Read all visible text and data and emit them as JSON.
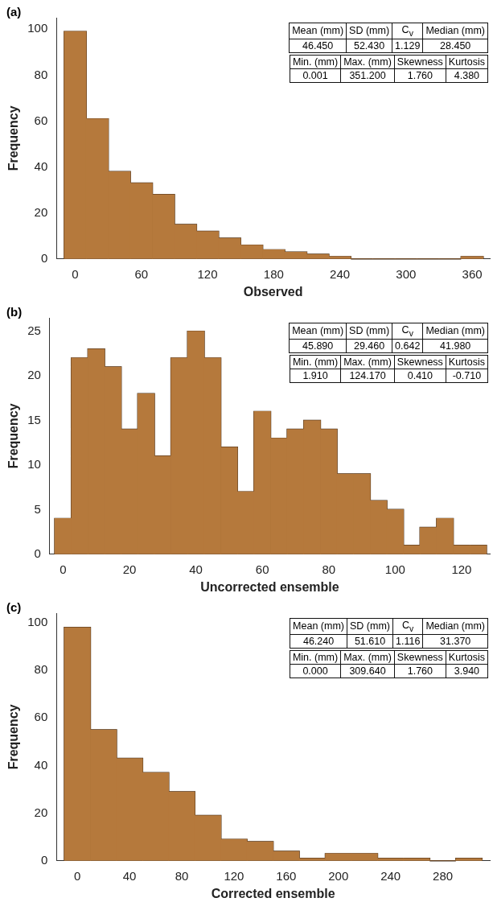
{
  "chart_data": [
    {
      "type": "histogram",
      "title": "(a)",
      "xlabel": "Observed",
      "ylabel": "Frequency",
      "color": "#b5793c",
      "bins": [
        -10,
        10,
        30,
        50,
        70,
        90,
        110,
        130,
        150,
        170,
        190,
        210,
        230,
        250,
        270,
        290,
        310,
        330,
        350,
        370
      ],
      "values": [
        99,
        61,
        38,
        33,
        28,
        15,
        12,
        9,
        6,
        4,
        3,
        2,
        1,
        0,
        0,
        0,
        0,
        0,
        1
      ],
      "xlim": [
        -17,
        376
      ],
      "xticks": [
        0,
        60,
        120,
        180,
        240,
        300,
        360
      ],
      "ylim": [
        0,
        105
      ],
      "yticks": [
        0,
        20,
        40,
        60,
        80,
        100
      ],
      "grid": false,
      "annotations": [
        "Mean (mm)",
        "SD (mm)",
        "C$_{v}$",
        "Median (mm)",
        "46.450",
        "52.430",
        "1.129",
        "28.450",
        "Min. (mm)",
        "Max. (mm)",
        "Skewness",
        "Kurtosis",
        "0.001",
        "351.200",
        "1.760",
        "4.380"
      ]
    },
    {
      "type": "histogram",
      "title": "(b)",
      "xlabel": "Uncorrected ensemble",
      "ylabel": "Frequency",
      "color": "#b5793c",
      "bins": [
        -2.5,
        2.5,
        7.5,
        12.5,
        17.5,
        22.5,
        27.5,
        32.5,
        37.5,
        42.5,
        47.5,
        52.5,
        57.5,
        62.5,
        67.5,
        72.5,
        77.5,
        82.5,
        87.5,
        92.5,
        97.5,
        102.5,
        107.5,
        112.5,
        117.5,
        122.5,
        127.5
      ],
      "values": [
        4,
        22,
        23,
        21,
        14,
        18,
        11,
        22,
        25,
        22,
        12,
        7,
        16,
        13,
        14,
        15,
        14,
        9,
        9,
        6,
        5,
        1,
        3,
        4,
        1,
        1
      ],
      "xlim": [
        -4,
        128.5
      ],
      "xticks": [
        0,
        20,
        40,
        60,
        80,
        100,
        120
      ],
      "ylim": [
        0,
        26.5
      ],
      "yticks": [
        0,
        5,
        10,
        15,
        20,
        25
      ],
      "grid": false,
      "annotations": [
        "Mean (mm)",
        "SD (mm)",
        "C$_{v}$",
        "Median (mm)",
        "45.890",
        "29.460",
        "0.642",
        "41.980",
        "Min. (mm)",
        "Max. (mm)",
        "Skewness",
        "Kurtosis",
        "1.910",
        "124.170",
        "0.410",
        "-0.710"
      ]
    },
    {
      "type": "histogram",
      "title": "(c)",
      "xlabel": "Corrected ensemble",
      "ylabel": "Frequency",
      "color": "#b5793c",
      "bins": [
        -10,
        10,
        30,
        50,
        70,
        90,
        110,
        130,
        150,
        170,
        190,
        210,
        230,
        250,
        270,
        290,
        310
      ],
      "values": [
        98,
        55,
        43,
        37,
        29,
        19,
        9,
        8,
        4,
        1,
        3,
        3,
        1,
        1,
        0,
        1
      ],
      "xlim": [
        -16,
        316
      ],
      "xticks": [
        0,
        40,
        80,
        120,
        160,
        200,
        240,
        280
      ],
      "ylim": [
        0,
        104
      ],
      "yticks": [
        0,
        20,
        40,
        60,
        80,
        100
      ],
      "grid": false,
      "annotations": [
        "Mean (mm)",
        "SD (mm)",
        "C$_{v}$",
        "Median (mm)",
        "46.240",
        "51.610",
        "1.116",
        "31.370",
        "Min. (mm)",
        "Max. (mm)",
        "Skewness",
        "Kurtosis",
        "0.000",
        "309.640",
        "1.760",
        "3.940"
      ]
    }
  ]
}
